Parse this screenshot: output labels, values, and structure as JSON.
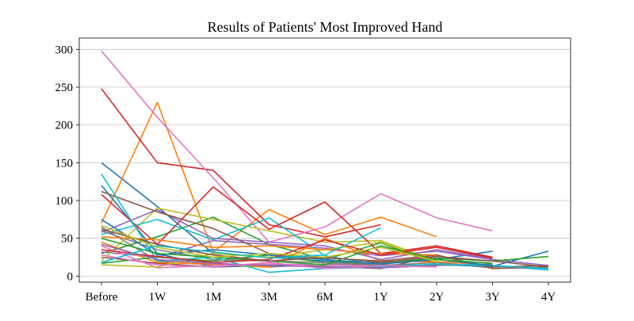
{
  "chart_data": {
    "type": "line",
    "title": "Results of Patients' Most Improved Hand",
    "xlabel": "",
    "ylabel": "",
    "categories": [
      "Before",
      "1W",
      "1M",
      "3M",
      "6M",
      "1Y",
      "2Y",
      "3Y",
      "4Y"
    ],
    "yticks": [
      0,
      50,
      100,
      150,
      200,
      250,
      300
    ],
    "ylim": [
      -8,
      315
    ],
    "grid": "horizontal",
    "series": [
      {
        "color": "#1f77b4",
        "values": [
          150,
          92,
          30,
          25,
          20,
          17,
          22,
          33,
          null
        ]
      },
      {
        "color": "#ff7f0e",
        "values": [
          70,
          230,
          32,
          88,
          55,
          78,
          52,
          null,
          null
        ]
      },
      {
        "color": "#2ca02c",
        "values": [
          30,
          52,
          78,
          42,
          22,
          44,
          16,
          null,
          null
        ]
      },
      {
        "color": "#d62728",
        "values": [
          248,
          150,
          140,
          68,
          52,
          68,
          null,
          null,
          null
        ]
      },
      {
        "color": "#9467bd",
        "values": [
          32,
          25,
          47,
          42,
          37,
          27,
          33,
          22,
          14
        ]
      },
      {
        "color": "#8c564b",
        "values": [
          25,
          17,
          12,
          14,
          13,
          10,
          27,
          12,
          14
        ]
      },
      {
        "color": "#e377c2",
        "values": [
          298,
          210,
          130,
          45,
          65,
          109,
          77,
          60,
          null
        ]
      },
      {
        "color": "#7f7f7f",
        "values": [
          65,
          20,
          15,
          12,
          16,
          14,
          18,
          11,
          null
        ]
      },
      {
        "color": "#bcbd22",
        "values": [
          20,
          90,
          75,
          60,
          45,
          47,
          20,
          null,
          null
        ]
      },
      {
        "color": "#17becf",
        "values": [
          55,
          75,
          48,
          77,
          27,
          14,
          15,
          14,
          8
        ]
      },
      {
        "color": "#1f77b4",
        "values": [
          120,
          30,
          12,
          15,
          12,
          13,
          15,
          13,
          33
        ]
      },
      {
        "color": "#ff7f0e",
        "values": [
          45,
          18,
          16,
          12,
          50,
          20,
          19,
          15,
          null
        ]
      },
      {
        "color": "#2ca02c",
        "values": [
          17,
          25,
          20,
          28,
          18,
          17,
          24,
          20,
          26
        ]
      },
      {
        "color": "#d62728",
        "values": [
          108,
          42,
          118,
          62,
          98,
          30,
          40,
          25,
          null
        ]
      },
      {
        "color": "#9467bd",
        "values": [
          58,
          88,
          50,
          45,
          40,
          22,
          35,
          23,
          null
        ]
      },
      {
        "color": "#8c564b",
        "values": [
          112,
          85,
          63,
          30,
          24,
          20,
          28,
          10,
          12
        ]
      },
      {
        "color": "#e377c2",
        "values": [
          40,
          11,
          14,
          16,
          15,
          13,
          13,
          null,
          null
        ]
      },
      {
        "color": "#7f7f7f",
        "values": [
          60,
          35,
          22,
          20,
          18,
          15,
          14,
          16,
          null
        ]
      },
      {
        "color": "#bcbd22",
        "values": [
          15,
          12,
          30,
          25,
          35,
          45,
          18,
          null,
          null
        ]
      },
      {
        "color": "#17becf",
        "values": [
          135,
          20,
          25,
          5,
          10,
          12,
          16,
          14,
          10
        ]
      },
      {
        "color": "#1f77b4",
        "values": [
          75,
          28,
          35,
          28,
          22,
          16,
          22,
          14,
          null
        ]
      },
      {
        "color": "#ff7f0e",
        "values": [
          52,
          48,
          38,
          40,
          35,
          30,
          28,
          null,
          null
        ]
      },
      {
        "color": "#2ca02c",
        "values": [
          50,
          30,
          25,
          20,
          15,
          40,
          22,
          17,
          null
        ]
      },
      {
        "color": "#d62728",
        "values": [
          35,
          26,
          18,
          22,
          48,
          28,
          38,
          24,
          null
        ]
      },
      {
        "color": "#9467bd",
        "values": [
          42,
          22,
          17,
          14,
          12,
          11,
          14,
          null,
          null
        ]
      },
      {
        "color": "#8c564b",
        "values": [
          62,
          42,
          28,
          20,
          25,
          18,
          26,
          20,
          12
        ]
      },
      {
        "color": "#e377c2",
        "values": [
          28,
          15,
          12,
          18,
          10,
          14,
          12,
          null,
          null
        ]
      },
      {
        "color": "#bcbd22",
        "values": [
          67,
          38,
          25,
          30,
          25,
          38,
          20,
          null,
          null
        ]
      },
      {
        "color": "#17becf",
        "values": [
          18,
          40,
          32,
          24,
          28,
          64,
          null,
          null,
          null
        ]
      }
    ]
  }
}
